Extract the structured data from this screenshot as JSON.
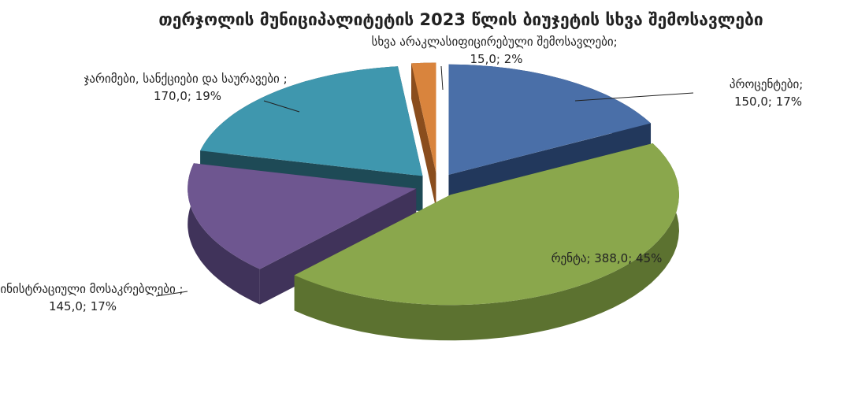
{
  "chart_data": {
    "type": "pie3d",
    "title": "თერჯოლის მუნიციპალიტეტის 2023 წლის ბიუჯეტის სხვა შემოსავლები",
    "categories": [
      "პროცენტები",
      "რენტა",
      "ადმინისტრაციული მოსაკრებლები ",
      "ჯარიმები, სანქციები და საურავები ",
      "სხვა არაკლასიფიცირებული შემოსავლები"
    ],
    "values": [
      150,
      388,
      145,
      170,
      15
    ],
    "value_labels": [
      "150,0; 17%",
      "388,0; 45%",
      "145,0; 17%",
      "170,0; 19%",
      "15,0; 2%"
    ],
    "label_separator": "; ",
    "colors": [
      "#4a6fa8",
      "#8aa74c",
      "#6e5690",
      "#3f97ae",
      "#d9843d"
    ],
    "side_colors": [
      "#22385c",
      "#5c7230",
      "#40335a",
      "#1e4a56",
      "#8a4d1d"
    ]
  }
}
